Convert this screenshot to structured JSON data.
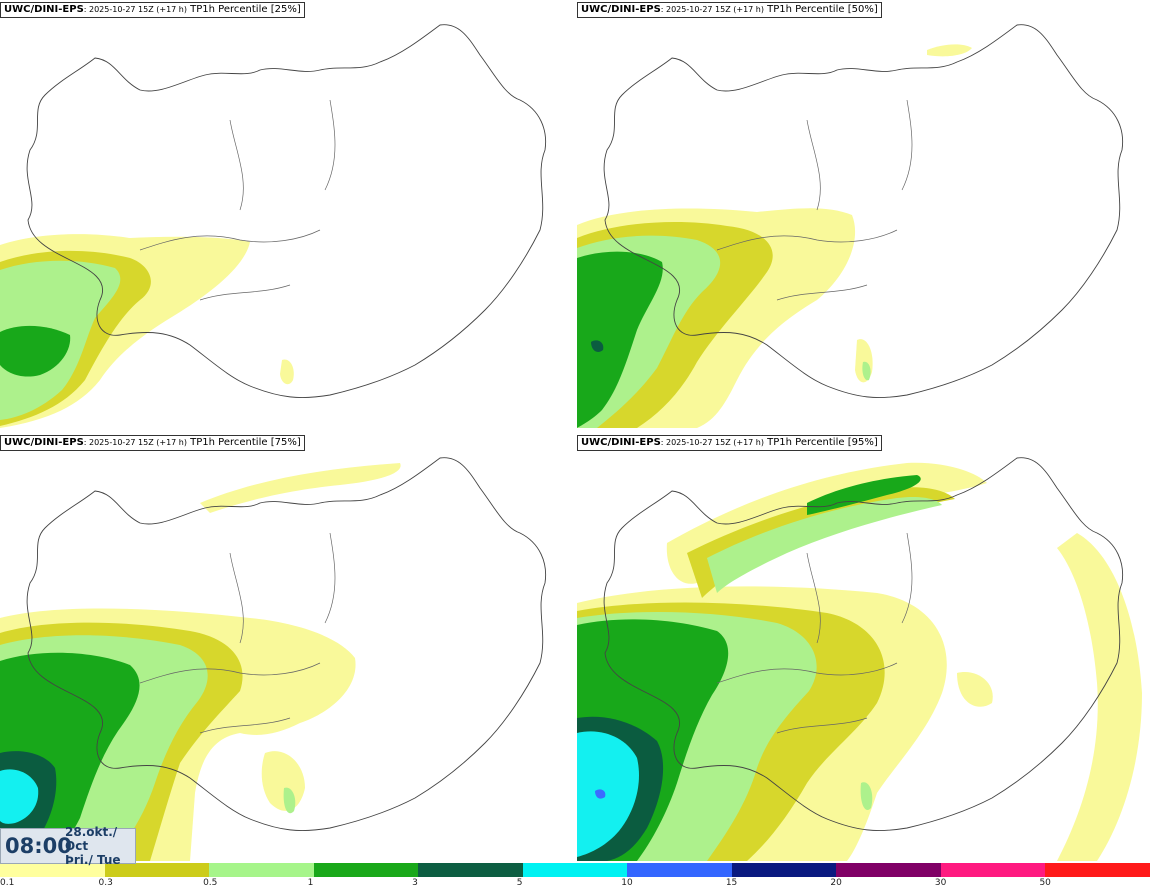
{
  "panels": [
    {
      "model": "UWC/DINI-EPS",
      "run": ": 2025-10-27 15Z (+17 h)",
      "field": " TP1h Percentile [25%]"
    },
    {
      "model": "UWC/DINI-EPS",
      "run": ": 2025-10-27 15Z (+17 h)",
      "field": " TP1h Percentile [50%]"
    },
    {
      "model": "UWC/DINI-EPS",
      "run": ": 2025-10-27 15Z (+17 h)",
      "field": " TP1h Percentile [75%]"
    },
    {
      "model": "UWC/DINI-EPS",
      "run": ": 2025-10-27 15Z (+17 h)",
      "field": " TP1h Percentile [95%]"
    }
  ],
  "timebox": {
    "time": "08:00",
    "line1": "28.okt./ Oct",
    "line2": "Þri./ Tue"
  },
  "legend": {
    "levels": [
      "0.1",
      "0.3",
      "0.5",
      "1",
      "3",
      "5",
      "10",
      "15",
      "20",
      "30",
      "50"
    ],
    "colors": [
      "#ffff9e",
      "#cccc1a",
      "#a6f58a",
      "#19a81a",
      "#0d5e42",
      "#00f2f2",
      "#3366ff",
      "#0a1a80",
      "#800066",
      "#ff1a80",
      "#ff1a1a"
    ]
  },
  "colors": {
    "p01": "#f9f99a",
    "p03": "#d7d72c",
    "p05": "#adf18c",
    "p1": "#18a81a",
    "p3": "#0b5c40",
    "p5": "#13f0f0",
    "p10": "#3b6cff"
  }
}
